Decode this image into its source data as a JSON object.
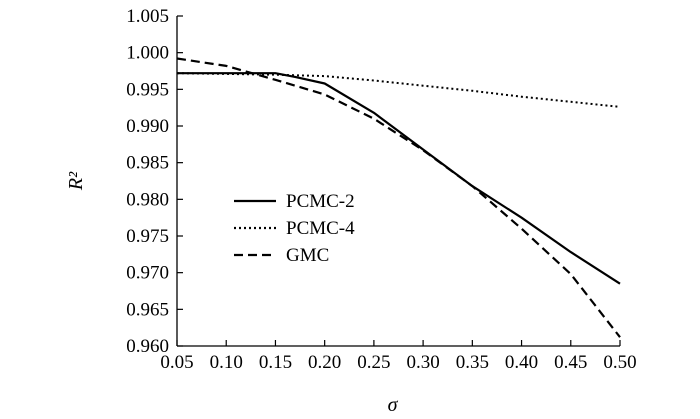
{
  "chart_data": {
    "type": "line",
    "title": "",
    "xlabel": "σ",
    "ylabel": "R²",
    "xlim": [
      0.05,
      0.5
    ],
    "ylim": [
      0.96,
      1.005
    ],
    "x_ticks": [
      "0.05",
      "0.10",
      "0.15",
      "0.20",
      "0.25",
      "0.30",
      "0.35",
      "0.40",
      "0.45",
      "0.50"
    ],
    "y_ticks": [
      "0.960",
      "0.965",
      "0.970",
      "0.975",
      "0.980",
      "0.985",
      "0.990",
      "0.995",
      "1.000",
      "1.005"
    ],
    "grid": false,
    "legend_position": "left",
    "series": [
      {
        "name": "PCMC-2",
        "style": "solid",
        "x": [
          0.05,
          0.1,
          0.15,
          0.17,
          0.2,
          0.25,
          0.3,
          0.35,
          0.4,
          0.45,
          0.5
        ],
        "y": [
          0.9972,
          0.9972,
          0.9972,
          0.9967,
          0.9958,
          0.9918,
          0.9868,
          0.9818,
          0.9775,
          0.9728,
          0.9685
        ]
      },
      {
        "name": "PCMC-4",
        "style": "dotted",
        "x": [
          0.05,
          0.1,
          0.15,
          0.2,
          0.25,
          0.3,
          0.35,
          0.4,
          0.45,
          0.5
        ],
        "y": [
          0.9972,
          0.9971,
          0.997,
          0.9968,
          0.9962,
          0.9955,
          0.9948,
          0.994,
          0.9933,
          0.9926
        ]
      },
      {
        "name": "GMC",
        "style": "dashed",
        "x": [
          0.05,
          0.1,
          0.15,
          0.2,
          0.25,
          0.3,
          0.35,
          0.4,
          0.45,
          0.5
        ],
        "y": [
          0.9992,
          0.9982,
          0.9963,
          0.9943,
          0.991,
          0.9867,
          0.9818,
          0.976,
          0.9698,
          0.9612
        ]
      }
    ]
  }
}
